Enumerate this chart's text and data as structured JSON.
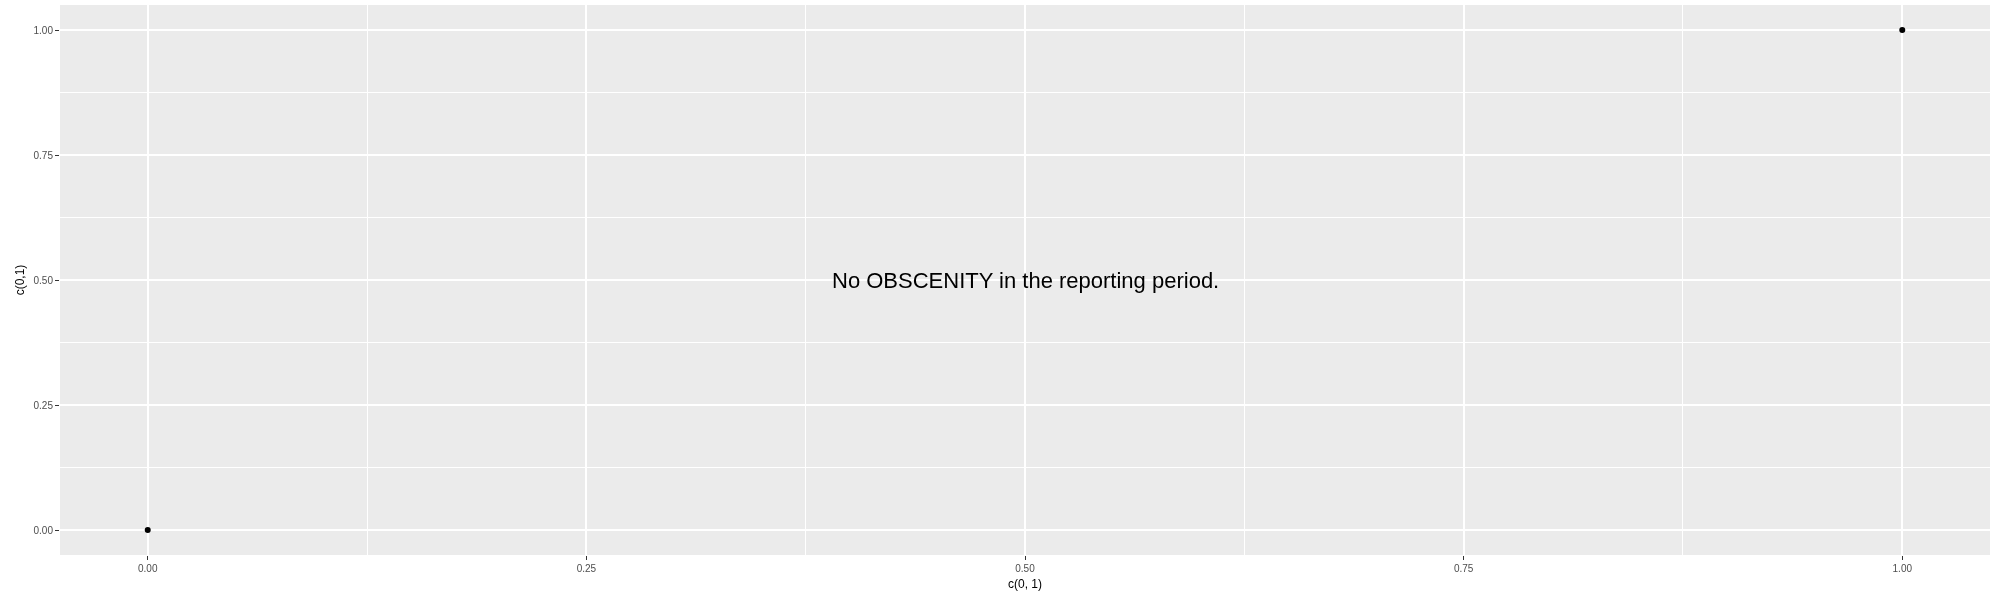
{
  "chart_data": {
    "type": "scatter",
    "xlabel": "c(0, 1)",
    "ylabel": "c(0,1)",
    "x": [
      0,
      1
    ],
    "series": [
      {
        "color": "#000000",
        "values": [
          0,
          1
        ]
      }
    ],
    "xlim": [
      -0.05,
      1.05
    ],
    "ylim": [
      -0.05,
      1.05
    ],
    "xticks": [
      {
        "value": 0,
        "label": "0.00"
      },
      {
        "value": 0.25,
        "label": "0.25"
      },
      {
        "value": 0.5,
        "label": "0.50"
      },
      {
        "value": 0.75,
        "label": "0.75"
      },
      {
        "value": 1,
        "label": "1.00"
      }
    ],
    "yticks": [
      {
        "value": 0,
        "label": "0.00"
      },
      {
        "value": 0.25,
        "label": "0.25"
      },
      {
        "value": 0.5,
        "label": "0.50"
      },
      {
        "value": 0.75,
        "label": "0.75"
      },
      {
        "value": 1,
        "label": "1.00"
      }
    ],
    "grid": true,
    "marker": "circle",
    "annotations": [
      "No OBSCENITY in the reporting period."
    ]
  }
}
